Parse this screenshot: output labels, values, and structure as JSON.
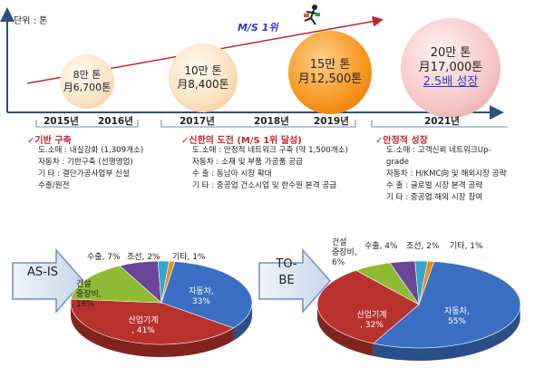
{
  "timeline": {
    "unit": "단위 : 톤",
    "ms_label": "M/S 1위",
    "bubbles": [
      {
        "line1": "8만 톤",
        "line2": "月6,700톤"
      },
      {
        "line1": "10만 톤",
        "line2": "月8,400톤"
      },
      {
        "line1": "15만 톤",
        "line2": "月12,500톤"
      },
      {
        "line1": "20만 톤",
        "line2": "月17,000톤",
        "line3": "2.5배 성장"
      }
    ],
    "years": [
      "2015년",
      "2016년",
      "2017년",
      "2018년",
      "2019년",
      "2021년"
    ]
  },
  "sections": [
    {
      "title": "✓기반 구축",
      "lines": [
        "도.소매 : 내실강화 (1,309개소)",
        "자동차 : 기반구축 (선행영업)",
        "기 타   : 결단가공사업부 신설",
        "           수출/원전"
      ]
    },
    {
      "title": "✓신한의 도전 (M/S 1위 달성)",
      "lines": [
        "도.소매 : 안정적 네트워크 구축 (약 1,500개소)",
        "자동차 : 소재 및 부품 가공품 공급",
        "수  출 : 동남아 시장 확대",
        "기  타 : 중공업 건소시업 및 한수원 본격 공급"
      ]
    },
    {
      "title": "✓안정적 성장",
      "lines": [
        "도.소매 : 고객신뢰 네트워크Up-",
        "grade",
        "자동차 : H/KMC向 및 해외시장 공략",
        "수  출 : 글로벌 시장 본격 공략",
        "기  타 : 중공업 해외 시장 참여"
      ]
    }
  ],
  "arrows": {
    "asis": "AS-IS",
    "tobe_1": "TO-",
    "tobe_2": "BE"
  },
  "chart_data": [
    {
      "type": "pie",
      "categories": [
        "자동차",
        "산업기계",
        "건설 중장비",
        "수출",
        "조선",
        "기타"
      ],
      "values": [
        33,
        41,
        16,
        7,
        2,
        1
      ],
      "labels": [
        "자동차,\n33%",
        "산업기계\n, 41%",
        "건설\n중장비,\n16%",
        "수출, 7%",
        "조선, 2%",
        "기타, 1%"
      ],
      "colors": [
        "#3a6fc3",
        "#b8322d",
        "#8fbb34",
        "#6b4597",
        "#33a5c9",
        "#ef8a1a"
      ]
    },
    {
      "type": "pie",
      "categories": [
        "자동차",
        "산업기계",
        "건설 중장비",
        "수출",
        "조선",
        "기타"
      ],
      "values": [
        55,
        32,
        6,
        4,
        2,
        1
      ],
      "labels": [
        "자동차,\n55%",
        "산업기계\n, 32%",
        "건설\n중장비,\n6%",
        "수출, 4%",
        "조선, 2%",
        "기타, 1%"
      ],
      "colors": [
        "#3a6fc3",
        "#b8322d",
        "#8fbb34",
        "#6b4597",
        "#33a5c9",
        "#ef8a1a"
      ]
    }
  ]
}
